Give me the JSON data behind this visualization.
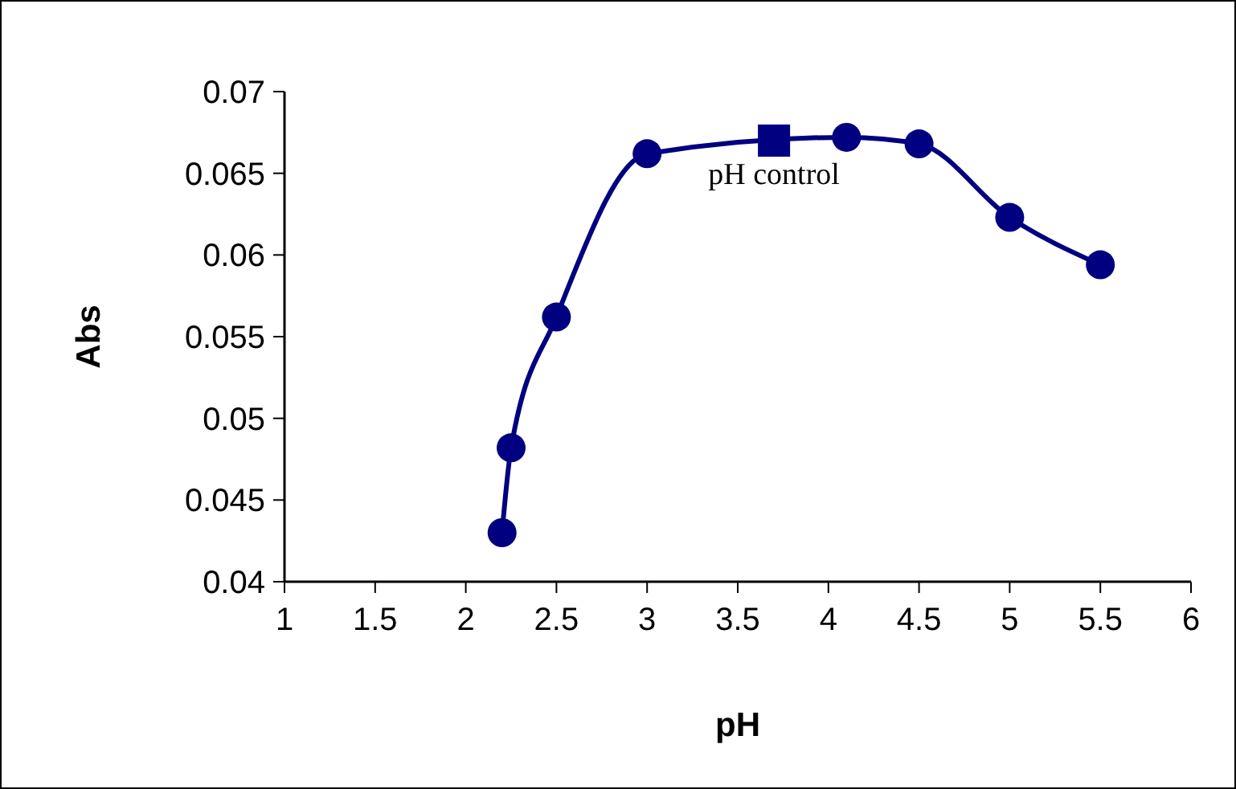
{
  "chart_data": {
    "type": "line",
    "xlabel": "pH",
    "ylabel": "Abs",
    "xlim": [
      1,
      6
    ],
    "xticks": [
      1,
      1.5,
      2,
      2.5,
      3,
      3.5,
      4,
      4.5,
      5,
      5.5,
      6
    ],
    "ylim": [
      0.04,
      0.07
    ],
    "yticks": [
      0.04,
      0.045,
      0.05,
      0.055,
      0.06,
      0.065,
      0.07
    ],
    "grid": false,
    "series": [
      {
        "type": "line",
        "color": "#000080",
        "marker": "circle",
        "x": [
          2.2,
          2.25,
          2.5,
          3,
          4.1,
          4.5,
          5,
          5.5
        ],
        "values": [
          0.043,
          0.0482,
          0.0562,
          0.0662,
          0.0672,
          0.0668,
          0.0623,
          0.0594
        ]
      },
      {
        "type": "scatter",
        "color": "#000080",
        "marker": "square",
        "x": [
          3.7
        ],
        "values": [
          0.067
        ]
      }
    ],
    "annotations": [
      {
        "text": "pH control",
        "x": 3.7,
        "y": 0.067
      }
    ]
  }
}
